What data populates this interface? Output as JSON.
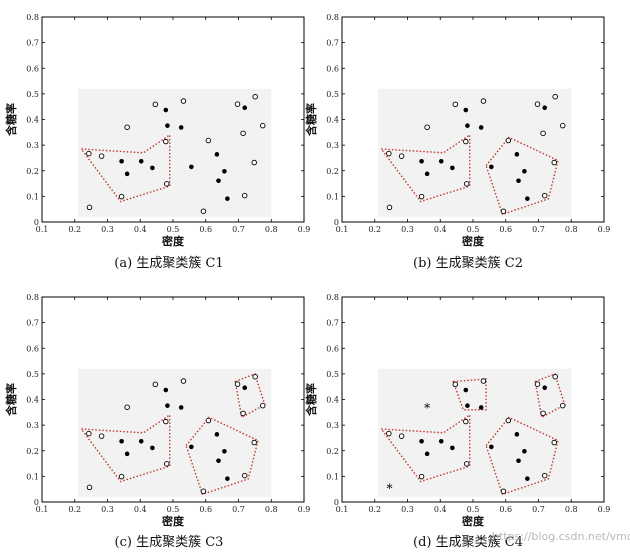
{
  "chart_data": [
    {
      "type": "scatter",
      "caption": "(a) 生成聚类簇 C1",
      "xlabel": "密度",
      "ylabel": "含糖率",
      "xlim": [
        0.1,
        0.9
      ],
      "ylim": [
        0,
        0.8
      ],
      "xticks": [
        "0.1",
        "0.2",
        "0.3",
        "0.4",
        "0.5",
        "0.6",
        "0.7",
        "0.8",
        "0.9"
      ],
      "yticks": [
        "0",
        "0.1",
        "0.2",
        "0.3",
        "0.4",
        "0.5",
        "0.6",
        "0.7",
        "0.8"
      ],
      "core_points": [
        [
          0.343,
          0.237
        ],
        [
          0.36,
          0.188
        ],
        [
          0.403,
          0.237
        ],
        [
          0.437,
          0.211
        ],
        [
          0.478,
          0.437
        ],
        [
          0.483,
          0.376
        ],
        [
          0.525,
          0.369
        ],
        [
          0.556,
          0.215
        ],
        [
          0.634,
          0.264
        ],
        [
          0.639,
          0.161
        ],
        [
          0.657,
          0.198
        ],
        [
          0.666,
          0.091
        ],
        [
          0.719,
          0.446
        ]
      ],
      "non_core_points": [
        [
          0.243,
          0.267
        ],
        [
          0.245,
          0.057
        ],
        [
          0.282,
          0.257
        ],
        [
          0.343,
          0.099
        ],
        [
          0.36,
          0.37
        ],
        [
          0.446,
          0.459
        ],
        [
          0.478,
          0.314
        ],
        [
          0.481,
          0.149
        ],
        [
          0.532,
          0.472
        ],
        [
          0.593,
          0.042
        ],
        [
          0.608,
          0.318
        ],
        [
          0.697,
          0.46
        ],
        [
          0.714,
          0.346
        ],
        [
          0.719,
          0.103
        ],
        [
          0.748,
          0.232
        ],
        [
          0.751,
          0.489
        ],
        [
          0.774,
          0.376
        ]
      ],
      "outliers": [],
      "clusters": [
        [
          [
            0.22,
            0.285
          ],
          [
            0.41,
            0.27
          ],
          [
            0.49,
            0.34
          ],
          [
            0.49,
            0.14
          ],
          [
            0.34,
            0.08
          ]
        ]
      ]
    },
    {
      "type": "scatter",
      "caption": "(b) 生成聚类簇 C2",
      "xlabel": "密度",
      "ylabel": "含糖率",
      "xlim": [
        0.1,
        0.9
      ],
      "ylim": [
        0,
        0.8
      ],
      "xticks": [
        "0.1",
        "0.2",
        "0.3",
        "0.4",
        "0.5",
        "0.6",
        "0.7",
        "0.8",
        "0.9"
      ],
      "yticks": [
        "0",
        "0.1",
        "0.2",
        "0.3",
        "0.4",
        "0.5",
        "0.6",
        "0.7",
        "0.8"
      ],
      "core_points": [
        [
          0.343,
          0.237
        ],
        [
          0.36,
          0.188
        ],
        [
          0.403,
          0.237
        ],
        [
          0.437,
          0.211
        ],
        [
          0.478,
          0.437
        ],
        [
          0.483,
          0.376
        ],
        [
          0.525,
          0.369
        ],
        [
          0.556,
          0.215
        ],
        [
          0.634,
          0.264
        ],
        [
          0.639,
          0.161
        ],
        [
          0.657,
          0.198
        ],
        [
          0.666,
          0.091
        ],
        [
          0.719,
          0.446
        ]
      ],
      "non_core_points": [
        [
          0.243,
          0.267
        ],
        [
          0.245,
          0.057
        ],
        [
          0.282,
          0.257
        ],
        [
          0.343,
          0.099
        ],
        [
          0.36,
          0.37
        ],
        [
          0.446,
          0.459
        ],
        [
          0.478,
          0.314
        ],
        [
          0.481,
          0.149
        ],
        [
          0.532,
          0.472
        ],
        [
          0.593,
          0.042
        ],
        [
          0.608,
          0.318
        ],
        [
          0.697,
          0.46
        ],
        [
          0.714,
          0.346
        ],
        [
          0.719,
          0.103
        ],
        [
          0.748,
          0.232
        ],
        [
          0.751,
          0.489
        ],
        [
          0.774,
          0.376
        ]
      ],
      "outliers": [],
      "clusters": [
        [
          [
            0.22,
            0.285
          ],
          [
            0.41,
            0.27
          ],
          [
            0.49,
            0.34
          ],
          [
            0.49,
            0.14
          ],
          [
            0.34,
            0.08
          ]
        ],
        [
          [
            0.54,
            0.22
          ],
          [
            0.61,
            0.33
          ],
          [
            0.76,
            0.24
          ],
          [
            0.73,
            0.09
          ],
          [
            0.59,
            0.03
          ]
        ]
      ]
    },
    {
      "type": "scatter",
      "caption": "(c) 生成聚类簇 C3",
      "xlabel": "密度",
      "ylabel": "含糖率",
      "xlim": [
        0.1,
        0.9
      ],
      "ylim": [
        0,
        0.8
      ],
      "xticks": [
        "0.1",
        "0.2",
        "0.3",
        "0.4",
        "0.5",
        "0.6",
        "0.7",
        "0.8",
        "0.9"
      ],
      "yticks": [
        "0",
        "0.1",
        "0.2",
        "0.3",
        "0.4",
        "0.5",
        "0.6",
        "0.7",
        "0.8"
      ],
      "core_points": [
        [
          0.343,
          0.237
        ],
        [
          0.36,
          0.188
        ],
        [
          0.403,
          0.237
        ],
        [
          0.437,
          0.211
        ],
        [
          0.478,
          0.437
        ],
        [
          0.483,
          0.376
        ],
        [
          0.525,
          0.369
        ],
        [
          0.556,
          0.215
        ],
        [
          0.634,
          0.264
        ],
        [
          0.639,
          0.161
        ],
        [
          0.657,
          0.198
        ],
        [
          0.666,
          0.091
        ],
        [
          0.719,
          0.446
        ]
      ],
      "non_core_points": [
        [
          0.243,
          0.267
        ],
        [
          0.245,
          0.057
        ],
        [
          0.282,
          0.257
        ],
        [
          0.343,
          0.099
        ],
        [
          0.36,
          0.37
        ],
        [
          0.446,
          0.459
        ],
        [
          0.478,
          0.314
        ],
        [
          0.481,
          0.149
        ],
        [
          0.532,
          0.472
        ],
        [
          0.593,
          0.042
        ],
        [
          0.608,
          0.318
        ],
        [
          0.697,
          0.46
        ],
        [
          0.714,
          0.346
        ],
        [
          0.719,
          0.103
        ],
        [
          0.748,
          0.232
        ],
        [
          0.751,
          0.489
        ],
        [
          0.774,
          0.376
        ]
      ],
      "outliers": [],
      "clusters": [
        [
          [
            0.22,
            0.285
          ],
          [
            0.41,
            0.27
          ],
          [
            0.49,
            0.34
          ],
          [
            0.49,
            0.14
          ],
          [
            0.34,
            0.08
          ]
        ],
        [
          [
            0.54,
            0.22
          ],
          [
            0.61,
            0.33
          ],
          [
            0.76,
            0.24
          ],
          [
            0.73,
            0.09
          ],
          [
            0.59,
            0.03
          ]
        ],
        [
          [
            0.69,
            0.47
          ],
          [
            0.75,
            0.5
          ],
          [
            0.78,
            0.38
          ],
          [
            0.71,
            0.33
          ]
        ]
      ]
    },
    {
      "type": "scatter",
      "caption": "(d) 生成聚类簇 C4",
      "xlabel": "密度",
      "ylabel": "含糖率",
      "xlim": [
        0.1,
        0.9
      ],
      "ylim": [
        0,
        0.8
      ],
      "xticks": [
        "0.1",
        "0.2",
        "0.3",
        "0.4",
        "0.5",
        "0.6",
        "0.7",
        "0.8",
        "0.9"
      ],
      "yticks": [
        "0",
        "0.1",
        "0.2",
        "0.3",
        "0.4",
        "0.5",
        "0.6",
        "0.7",
        "0.8"
      ],
      "core_points": [
        [
          0.343,
          0.237
        ],
        [
          0.36,
          0.188
        ],
        [
          0.403,
          0.237
        ],
        [
          0.437,
          0.211
        ],
        [
          0.478,
          0.437
        ],
        [
          0.483,
          0.376
        ],
        [
          0.525,
          0.369
        ],
        [
          0.556,
          0.215
        ],
        [
          0.634,
          0.264
        ],
        [
          0.639,
          0.161
        ],
        [
          0.657,
          0.198
        ],
        [
          0.666,
          0.091
        ],
        [
          0.719,
          0.446
        ]
      ],
      "non_core_points": [
        [
          0.243,
          0.267
        ],
        [
          0.282,
          0.257
        ],
        [
          0.343,
          0.099
        ],
        [
          0.446,
          0.459
        ],
        [
          0.478,
          0.314
        ],
        [
          0.481,
          0.149
        ],
        [
          0.532,
          0.472
        ],
        [
          0.593,
          0.042
        ],
        [
          0.608,
          0.318
        ],
        [
          0.697,
          0.46
        ],
        [
          0.714,
          0.346
        ],
        [
          0.719,
          0.103
        ],
        [
          0.748,
          0.232
        ],
        [
          0.751,
          0.489
        ],
        [
          0.774,
          0.376
        ]
      ],
      "outliers": [
        [
          0.36,
          0.37
        ],
        [
          0.245,
          0.057
        ]
      ],
      "clusters": [
        [
          [
            0.22,
            0.285
          ],
          [
            0.41,
            0.27
          ],
          [
            0.49,
            0.34
          ],
          [
            0.49,
            0.14
          ],
          [
            0.34,
            0.08
          ]
        ],
        [
          [
            0.54,
            0.22
          ],
          [
            0.61,
            0.33
          ],
          [
            0.76,
            0.24
          ],
          [
            0.73,
            0.09
          ],
          [
            0.59,
            0.03
          ]
        ],
        [
          [
            0.69,
            0.47
          ],
          [
            0.75,
            0.5
          ],
          [
            0.78,
            0.38
          ],
          [
            0.71,
            0.33
          ]
        ],
        [
          [
            0.44,
            0.47
          ],
          [
            0.54,
            0.48
          ],
          [
            0.54,
            0.36
          ],
          [
            0.47,
            0.36
          ]
        ]
      ]
    }
  ],
  "watermark": "https://blog.csdn.net/vmdchc",
  "colors": {
    "cluster_outline": "#c0392b",
    "point": "#000000",
    "axes": "#000000",
    "panel_bg": "#f2f2f2"
  }
}
